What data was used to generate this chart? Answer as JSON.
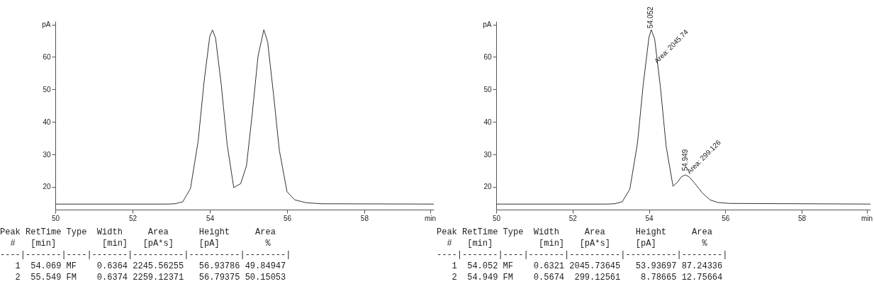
{
  "chart_data": [
    {
      "type": "line",
      "x": [
        50,
        52.9,
        53.1,
        53.3,
        53.5,
        53.7,
        53.85,
        54.0,
        54.07,
        54.15,
        54.3,
        54.45,
        54.62,
        54.8,
        54.95,
        55.1,
        55.25,
        55.4,
        55.5,
        55.65,
        55.8,
        56.0,
        56.2,
        56.5,
        56.9,
        59.8
      ],
      "series": [
        {
          "color": "#333333",
          "values": [
            14.7,
            14.7,
            14.8,
            15.4,
            19.5,
            34.2,
            52.2,
            66.4,
            68.3,
            65.8,
            51.1,
            33,
            19.8,
            21,
            26.5,
            42.6,
            60.3,
            68.4,
            64.5,
            48.5,
            31.3,
            18.5,
            16,
            15.1,
            14.8,
            14.7
          ]
        }
      ],
      "xlim": [
        50,
        59.8
      ],
      "xticks": [
        50,
        52,
        54,
        56,
        58,
        {
          "value": 59.7,
          "label": "min"
        }
      ],
      "ylim": [
        13,
        71
      ],
      "yticks": [
        20,
        30,
        40,
        50,
        60,
        {
          "value": 70,
          "label": "pA"
        }
      ],
      "grid": false,
      "marker": "none",
      "line_style": "solid",
      "annotations": [
        "Peak RetTime Type  Width     Area      Height     Area",
        "  #   [min]         [min]   [pA*s]     [pA]         %",
        "----|-------|----|-------|----------|----------|--------|",
        "   1  54.069 MF    0.6364 2245.56255   56.93786 49.84947",
        "   2  55.549 FM    0.6374 2259.12371   56.79375 50.15053"
      ]
    },
    {
      "type": "line",
      "x": [
        50,
        52.9,
        53.1,
        53.3,
        53.5,
        53.7,
        53.85,
        54.0,
        54.06,
        54.15,
        54.3,
        54.45,
        54.63,
        54.75,
        54.85,
        54.95,
        55.05,
        55.2,
        55.4,
        55.6,
        55.8,
        56.1,
        59.8
      ],
      "series": [
        {
          "color": "#333333",
          "values": [
            14.7,
            14.7,
            14.8,
            15.4,
            19.3,
            33.5,
            51.5,
            66,
            68.4,
            65.5,
            50.8,
            32.5,
            20.2,
            21.5,
            23.1,
            23.7,
            23.1,
            21.1,
            18.1,
            16,
            15.2,
            14.9,
            14.7
          ]
        }
      ],
      "xlim": [
        50,
        59.8
      ],
      "xticks": [
        50,
        52,
        54,
        56,
        58,
        {
          "value": 59.7,
          "label": "min"
        }
      ],
      "ylim": [
        13,
        71
      ],
      "yticks": [
        20,
        30,
        40,
        50,
        60,
        {
          "value": 70,
          "label": "pA"
        }
      ],
      "grid": false,
      "marker": "none",
      "line_style": "solid",
      "annotations": [
        {
          "text": "54.052",
          "x": 54.052,
          "y": 68.4
        },
        {
          "text": "Area: 2045.74",
          "x": 54.15,
          "y": 58
        },
        {
          "text": "54.949",
          "x": 54.949,
          "y": 24.5
        },
        {
          "text": "Area: 299.126",
          "x": 55.0,
          "y": 24
        },
        "Peak RetTime Type  Width     Area      Height     Area",
        "  #   [min]         [min]   [pA*s]     [pA]         %",
        "----|-------|----|-------|----------|----------|--------|",
        "   1  54.052 MF    0.6321 2045.73645   53.93697 87.24336",
        "   2  54.949 FM    0.5674  299.12561    8.78665 12.75664"
      ]
    }
  ]
}
